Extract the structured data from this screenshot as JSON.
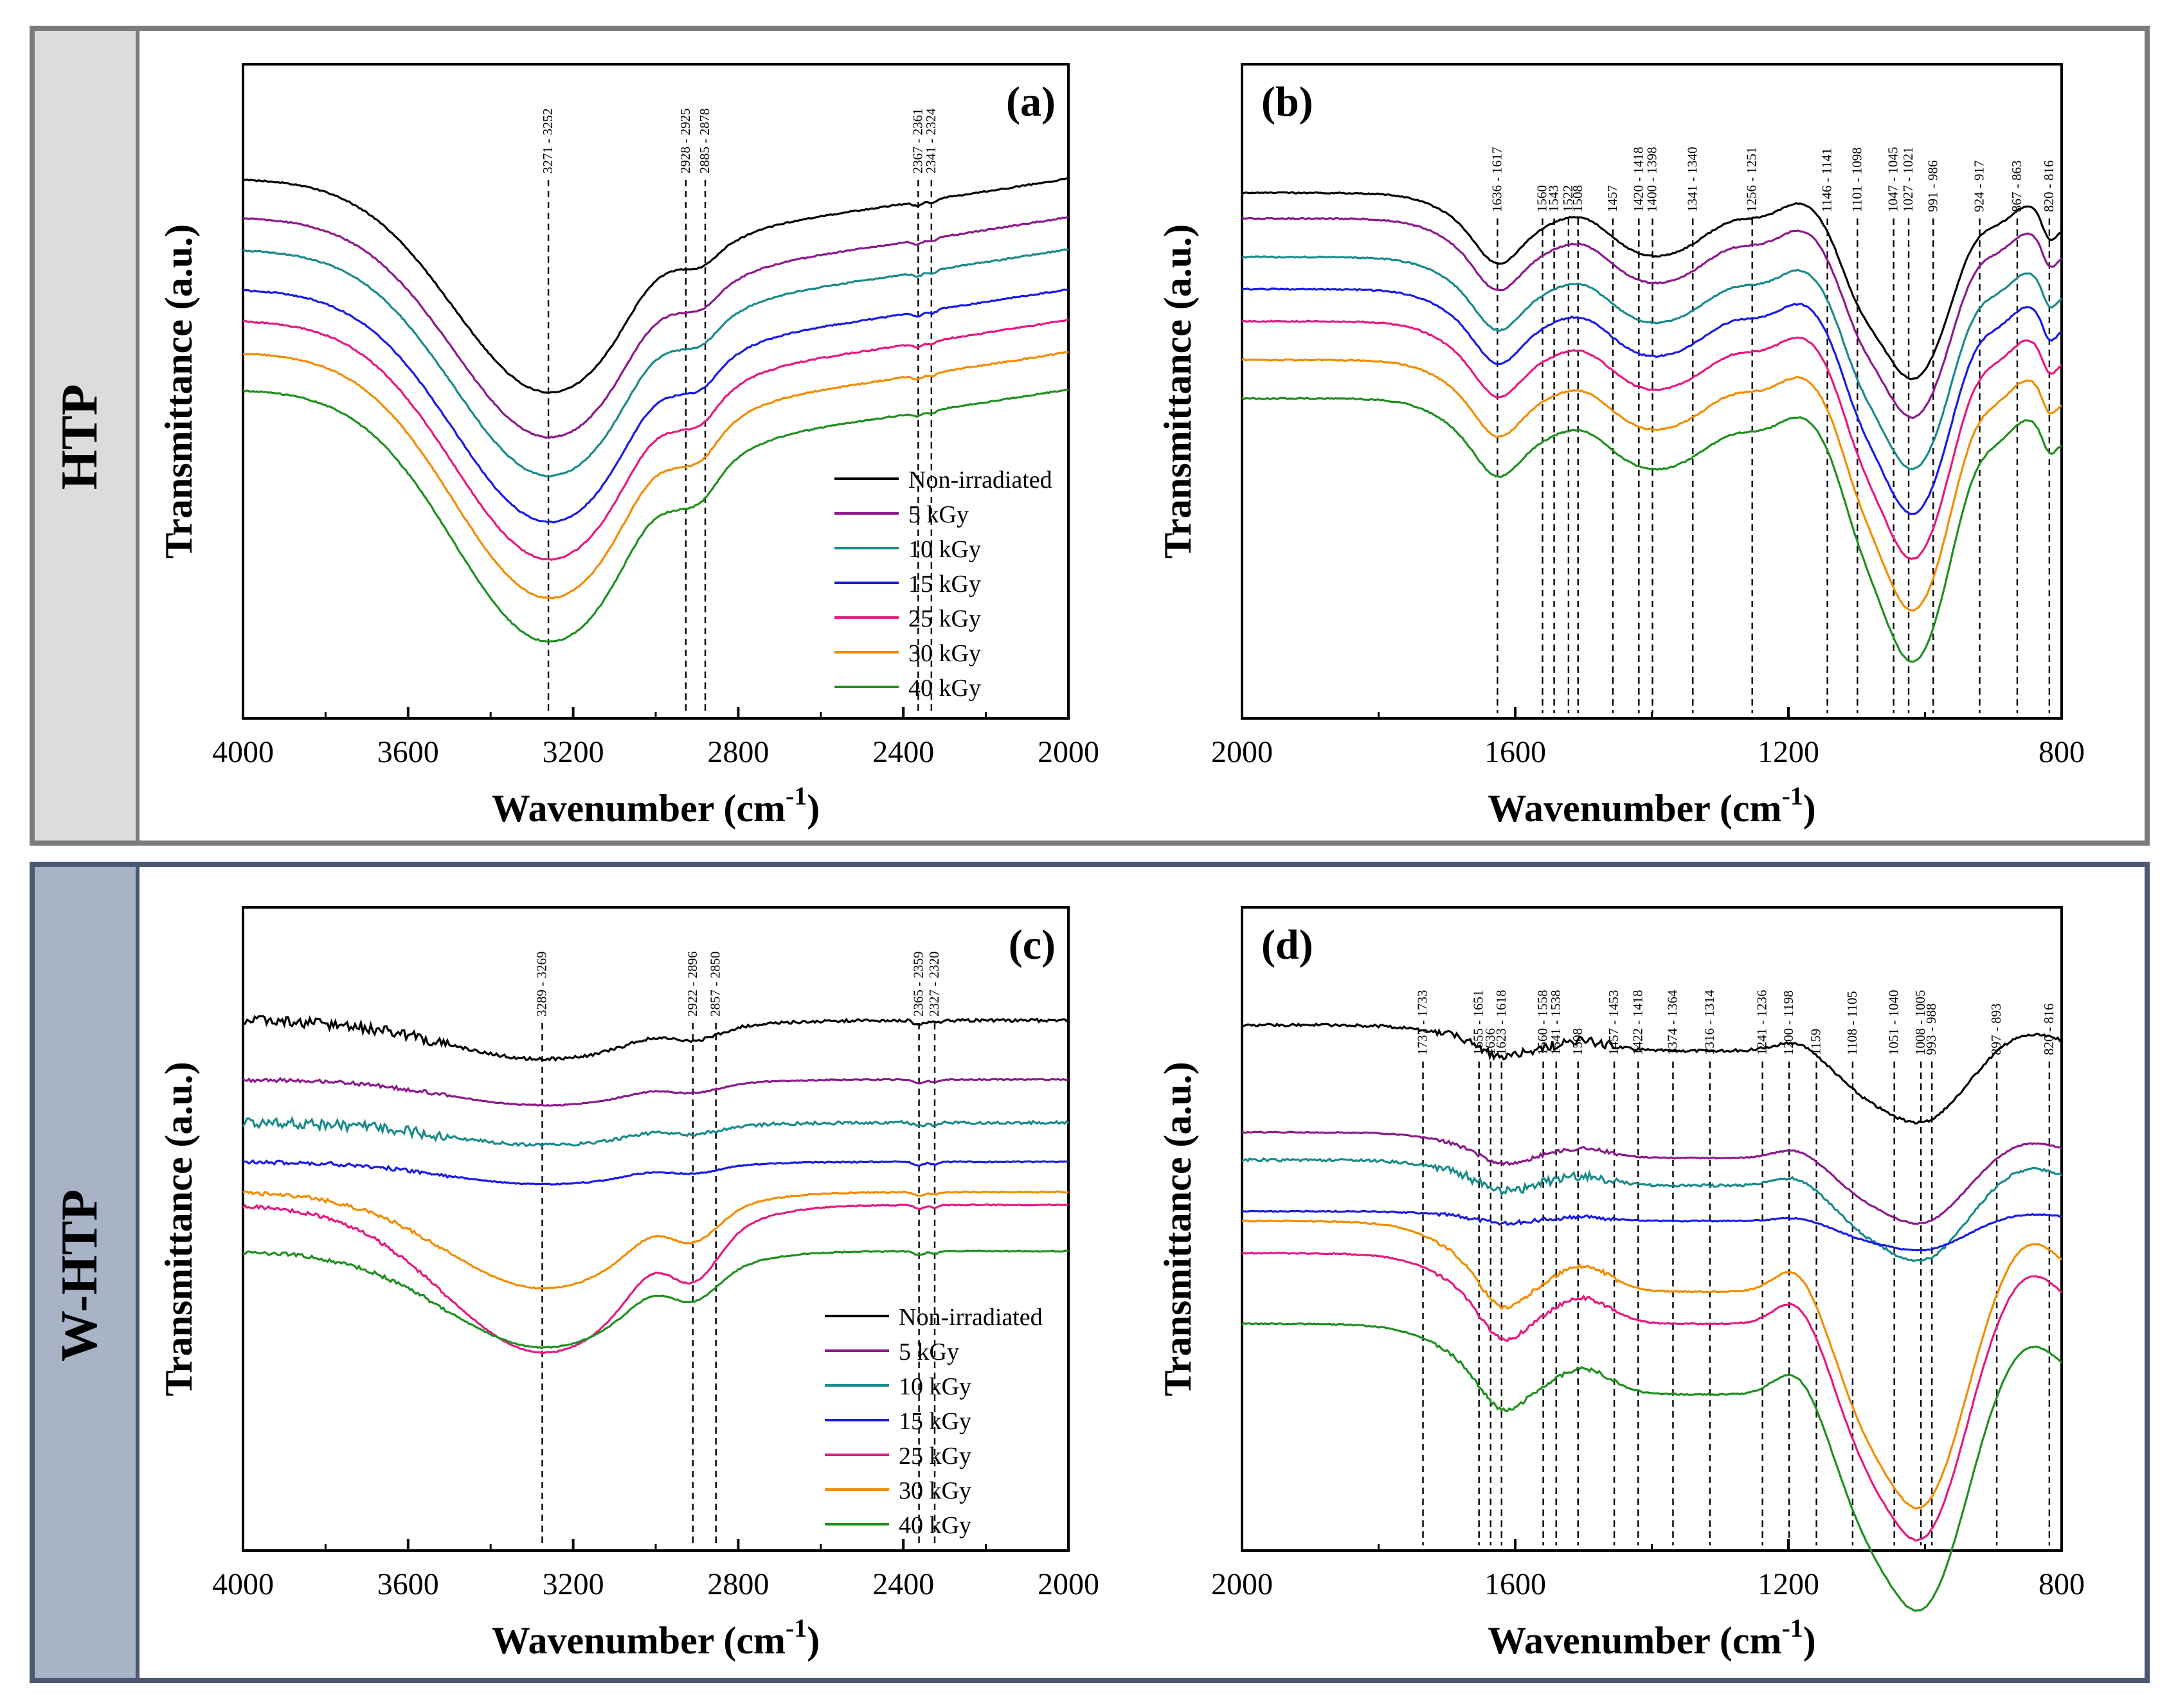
{
  "colors": {
    "frame_border": "#7b7b7b",
    "group1_band": "#dcdcdc",
    "group2_band": "#a9b3c6",
    "group2_border": "#4a5872",
    "series": {
      "Non-irradiated": "#000000",
      "5 kGy": "#8b1a8b",
      "10 kGy": "#1a8a8a",
      "15 kGy": "#1a1ae6",
      "25 kGy": "#e6197f",
      "30 kGy": "#f28c00",
      "40 kGy": "#1f8f1f"
    }
  },
  "groups": {
    "top": "HTP",
    "bottom": "W-HTP"
  },
  "series_names": [
    "Non-irradiated",
    "5 kGy",
    "10 kGy",
    "15 kGy",
    "25 kGy",
    "30 kGy",
    "40 kGy"
  ],
  "chart_data": [
    {
      "id": "a",
      "type": "line",
      "panel_label": "(a)",
      "group": "HTP",
      "xlabel": "Wavenumber (cm",
      "xlabel_sup": "-1",
      "xlabel_end": ")",
      "ylabel": "Transmittance (a.u.)",
      "xlim": [
        4000,
        2000
      ],
      "x_reversed": true,
      "xticks": [
        4000,
        3600,
        3200,
        2800,
        2400,
        2000
      ],
      "legend": "bottom-right",
      "peak_labels": [
        "3271 - 3252",
        "2928 - 2925",
        "2885 - 2878",
        "2367 - 2361",
        "2341 - 2324"
      ],
      "peak_positions": [
        3260,
        2927,
        2880,
        2364,
        2332
      ],
      "profile": "a",
      "noise": 0.0,
      "series": [
        {
          "name": "Non-irradiated",
          "offset": 0.0,
          "depth": 0.0
        },
        {
          "name": "5 kGy",
          "offset": 0.0,
          "depth": 1.0
        },
        {
          "name": "10 kGy",
          "offset": 0.0,
          "depth": 2.0
        },
        {
          "name": "15 kGy",
          "offset": 0.0,
          "depth": 3.0
        },
        {
          "name": "25 kGy",
          "offset": 0.0,
          "depth": 4.0
        },
        {
          "name": "30 kGy",
          "offset": 0.0,
          "depth": 5.0
        },
        {
          "name": "40 kGy",
          "offset": 0.0,
          "depth": 6.0
        }
      ]
    },
    {
      "id": "b",
      "type": "line",
      "panel_label": "(b)",
      "group": "HTP",
      "xlabel": "Wavenumber (cm",
      "xlabel_sup": "-1",
      "xlabel_end": ")",
      "ylabel": "Transmittance (a.u.)",
      "xlim": [
        2000,
        800
      ],
      "x_reversed": true,
      "xticks": [
        2000,
        1600,
        1200,
        800
      ],
      "legend": "none",
      "peak_labels": [
        "1636 - 1617",
        "1560",
        "1543",
        "1522",
        "1508",
        "1457",
        "1420 - 1418",
        "1400 - 1398",
        "1341 - 1340",
        "1256 - 1251",
        "1146 - 1141",
        "1101 - 1098",
        "1047 - 1045",
        "1027 - 1021",
        "991 - 986",
        "924 - 917",
        "867 - 863",
        "820 - 816"
      ],
      "peak_positions": [
        1626,
        1560,
        1543,
        1522,
        1508,
        1457,
        1419,
        1399,
        1340,
        1253,
        1143,
        1099,
        1046,
        1024,
        988,
        920,
        865,
        818
      ],
      "profile": "b",
      "noise": 0.0,
      "series": [
        {
          "name": "Non-irradiated",
          "depth": 0
        },
        {
          "name": "5 kGy",
          "depth": 1
        },
        {
          "name": "10 kGy",
          "depth": 2
        },
        {
          "name": "15 kGy",
          "depth": 3
        },
        {
          "name": "25 kGy",
          "depth": 4
        },
        {
          "name": "30 kGy",
          "depth": 5
        },
        {
          "name": "40 kGy",
          "depth": 6
        }
      ]
    },
    {
      "id": "c",
      "type": "line",
      "panel_label": "(c)",
      "group": "W-HTP",
      "xlabel": "Wavenumber (cm",
      "xlabel_sup": "-1",
      "xlabel_end": ")",
      "ylabel": "Transmittance (a.u.)",
      "xlim": [
        4000,
        2000
      ],
      "x_reversed": true,
      "xticks": [
        4000,
        3600,
        3200,
        2800,
        2400,
        2000
      ],
      "legend": "bottom-right",
      "peak_labels": [
        "3289 - 3269",
        "2922 - 2896",
        "2857 - 2850",
        "2365 - 2359",
        "2327 - 2320"
      ],
      "peak_positions": [
        3275,
        2910,
        2854,
        2362,
        2324
      ],
      "profile": "c",
      "noise": 1.0,
      "series": [
        {
          "name": "Non-irradiated",
          "depth": 0
        },
        {
          "name": "5 kGy",
          "depth": 1
        },
        {
          "name": "10 kGy",
          "depth": 2
        },
        {
          "name": "15 kGy",
          "depth": 3
        },
        {
          "name": "25 kGy",
          "depth": 4
        },
        {
          "name": "30 kGy",
          "depth": 5
        },
        {
          "name": "40 kGy",
          "depth": 6
        }
      ]
    },
    {
      "id": "d",
      "type": "line",
      "panel_label": "(d)",
      "group": "W-HTP",
      "xlabel": "Wavenumber (cm",
      "xlabel_sup": "-1",
      "xlabel_end": ")",
      "ylabel": "Transmittance (a.u.)",
      "xlim": [
        2000,
        800
      ],
      "x_reversed": true,
      "xticks": [
        2000,
        1600,
        1200,
        800
      ],
      "legend": "none",
      "peak_labels": [
        "1737 - 1733",
        "1655 - 1651",
        "1636",
        "1623 - 1618",
        "1560 - 1558",
        "1541 - 1538",
        "1508",
        "1457 - 1453",
        "1422 - 1418",
        "1374 - 1364",
        "1316 - 1314",
        "1241 - 1236",
        "1200 - 1198",
        "1159",
        "1108 - 1105",
        "1051 - 1040",
        "1008 - 1005",
        "993 - 988",
        "897 - 893",
        "820 - 816"
      ],
      "peak_positions": [
        1735,
        1653,
        1636,
        1620,
        1559,
        1540,
        1508,
        1455,
        1420,
        1369,
        1315,
        1238,
        1199,
        1159,
        1106,
        1045,
        1006,
        990,
        895,
        818
      ],
      "profile": "d",
      "noise": 1.0,
      "series": [
        {
          "name": "Non-irradiated",
          "depth": 0
        },
        {
          "name": "5 kGy",
          "depth": 1
        },
        {
          "name": "10 kGy",
          "depth": 2
        },
        {
          "name": "15 kGy",
          "depth": 3
        },
        {
          "name": "25 kGy",
          "depth": 4
        },
        {
          "name": "30 kGy",
          "depth": 5
        },
        {
          "name": "40 kGy",
          "depth": 6
        }
      ]
    }
  ]
}
